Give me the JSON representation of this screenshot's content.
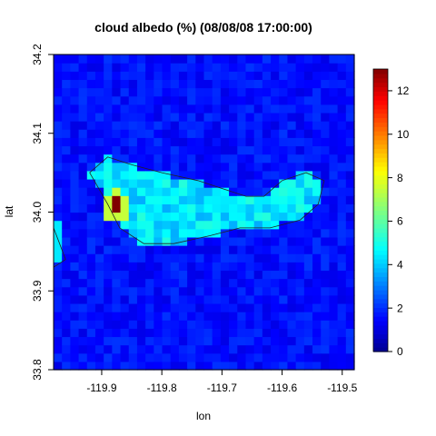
{
  "chart_data": {
    "type": "heatmap",
    "title": "cloud albedo (%) (08/08/08 17:00:00)",
    "xlabel": "lon",
    "ylabel": "lat",
    "xlim": [
      -119.98,
      -119.48
    ],
    "ylim": [
      33.8,
      34.2
    ],
    "x_ticks": [
      -119.9,
      -119.8,
      -119.7,
      -119.6,
      -119.5
    ],
    "x_tick_labels": [
      "-119.9",
      "-119.8",
      "-119.7",
      "-119.6",
      "-119.5"
    ],
    "y_ticks": [
      33.8,
      33.9,
      34.0,
      34.1,
      34.2
    ],
    "y_tick_labels": [
      "33.8",
      "33.9",
      "34.0",
      "34.1",
      "34.2"
    ],
    "colorbar": {
      "min": 0,
      "max": 13,
      "ticks": [
        0,
        2,
        4,
        6,
        8,
        10,
        12
      ],
      "tick_labels": [
        "0",
        "2",
        "4",
        "6",
        "8",
        "10",
        "12"
      ],
      "palette": "tim.colors"
    },
    "grid": false,
    "background_value": 1.6,
    "features": [
      {
        "description": "island plume",
        "lon": [
          -119.92,
          -119.57
        ],
        "lat": [
          33.96,
          34.06
        ],
        "value": 4.2
      },
      {
        "description": "eastern lobe",
        "lon": [
          -119.59,
          -119.53
        ],
        "lat": [
          34.0,
          34.04
        ],
        "value": 5.0
      },
      {
        "description": "peak",
        "lon": -119.875,
        "lat": 34.008,
        "value": 13.0
      },
      {
        "description": "western edge patch",
        "lon": -119.975,
        "lat": 33.96,
        "value": 4.5
      }
    ],
    "coastline": [
      [
        -119.92,
        34.05
      ],
      [
        -119.89,
        34.07
      ],
      [
        -119.85,
        34.06
      ],
      [
        -119.8,
        34.05
      ],
      [
        -119.74,
        34.04
      ],
      [
        -119.7,
        34.03
      ],
      [
        -119.66,
        34.02
      ],
      [
        -119.63,
        34.02
      ],
      [
        -119.6,
        34.04
      ],
      [
        -119.56,
        34.05
      ],
      [
        -119.53,
        34.04
      ],
      [
        -119.54,
        34.01
      ],
      [
        -119.57,
        33.99
      ],
      [
        -119.62,
        33.98
      ],
      [
        -119.67,
        33.98
      ],
      [
        -119.72,
        33.97
      ],
      [
        -119.78,
        33.96
      ],
      [
        -119.83,
        33.96
      ],
      [
        -119.87,
        33.98
      ],
      [
        -119.89,
        34.01
      ],
      [
        -119.92,
        34.05
      ]
    ],
    "coastline_west": [
      [
        -119.98,
        33.98
      ],
      [
        -119.97,
        33.96
      ],
      [
        -119.96,
        33.94
      ],
      [
        -119.98,
        33.93
      ]
    ]
  }
}
